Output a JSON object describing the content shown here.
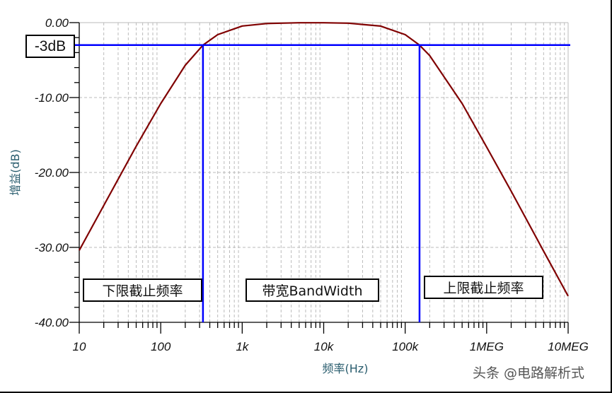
{
  "chart_data": {
    "type": "line",
    "xlabel": "频率(Hz)",
    "ylabel": "增益(dB)",
    "xscale": "log",
    "xlim": [
      10,
      10000000
    ],
    "ylim": [
      -40,
      0
    ],
    "xticks": [
      {
        "value": 10,
        "label": "10"
      },
      {
        "value": 100,
        "label": "100"
      },
      {
        "value": 1000,
        "label": "1k"
      },
      {
        "value": 10000,
        "label": "10k"
      },
      {
        "value": 100000,
        "label": "100k"
      },
      {
        "value": 1000000,
        "label": "1MEG"
      },
      {
        "value": 10000000,
        "label": "10MEG"
      }
    ],
    "yticks": [
      {
        "value": 0,
        "label": "0.00"
      },
      {
        "value": -10,
        "label": "-10.00"
      },
      {
        "value": -20,
        "label": "-20.00"
      },
      {
        "value": -30,
        "label": "-30.00"
      },
      {
        "value": -40,
        "label": "-40.00"
      }
    ],
    "grid": true,
    "series": [
      {
        "color": "#800000",
        "x": [
          10,
          20,
          50,
          100,
          200,
          330,
          500,
          1000,
          2000,
          5000,
          10000,
          20000,
          50000,
          100000,
          150000,
          200000,
          500000,
          1000000,
          2000000,
          5000000,
          10000000
        ],
        "y": [
          -30.4,
          -24.4,
          -16.5,
          -10.8,
          -5.7,
          -3.0,
          -1.6,
          -0.45,
          -0.12,
          -0.02,
          -0.02,
          -0.08,
          -0.46,
          -1.6,
          -3.0,
          -4.4,
          -10.8,
          -16.6,
          -22.5,
          -30.5,
          -36.5
        ]
      }
    ],
    "markers": {
      "color": "#0000ff",
      "level_db": -3,
      "lower_cutoff_hz": 330,
      "upper_cutoff_hz": 150000
    },
    "annotations": {
      "level": "-3dB",
      "lower": "下限截止频率",
      "bandwidth": "带宽BandWidth",
      "upper": "上限截止频率"
    }
  },
  "watermark": "头条 @电路解析式"
}
